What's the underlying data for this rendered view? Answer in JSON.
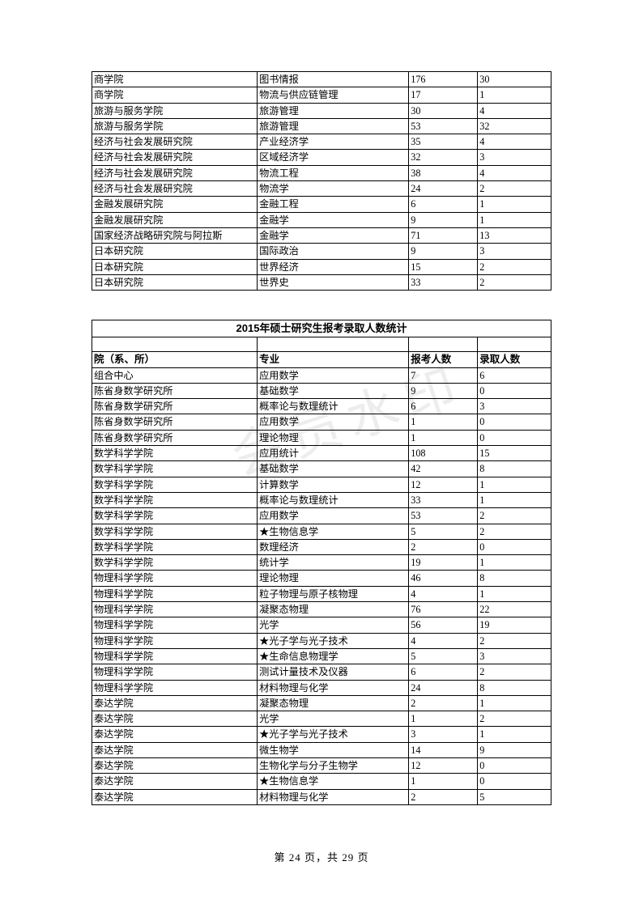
{
  "table1": {
    "rows": [
      [
        "商学院",
        "图书情报",
        "176",
        "30"
      ],
      [
        "商学院",
        "物流与供应链管理",
        "17",
        "1"
      ],
      [
        "旅游与服务学院",
        "旅游管理",
        "30",
        "4"
      ],
      [
        "旅游与服务学院",
        "旅游管理",
        "53",
        "32"
      ],
      [
        "经济与社会发展研究院",
        "产业经济学",
        "35",
        "4"
      ],
      [
        "经济与社会发展研究院",
        "区域经济学",
        "32",
        "3"
      ],
      [
        "经济与社会发展研究院",
        "物流工程",
        "38",
        "4"
      ],
      [
        "经济与社会发展研究院",
        "物流学",
        "24",
        "2"
      ],
      [
        "金融发展研究院",
        "金融工程",
        "6",
        "1"
      ],
      [
        "金融发展研究院",
        "金融学",
        "9",
        "1"
      ],
      [
        "国家经济战略研究院与阿拉斯",
        "金融学",
        "71",
        "13"
      ],
      [
        "日本研究院",
        "国际政治",
        "9",
        "3"
      ],
      [
        "日本研究院",
        "世界经济",
        "15",
        "2"
      ],
      [
        "日本研究院",
        "世界史",
        "33",
        "2"
      ]
    ]
  },
  "table2": {
    "title": "2015年硕士研究生报考录取人数统计",
    "headers": [
      "院（系、所）",
      "专业",
      "报考人数",
      "录取人数"
    ],
    "rows": [
      [
        "组合中心",
        "应用数学",
        "7",
        "6"
      ],
      [
        "陈省身数学研究所",
        "基础数学",
        "9",
        "0"
      ],
      [
        "陈省身数学研究所",
        "概率论与数理统计",
        "6",
        "3"
      ],
      [
        "陈省身数学研究所",
        "应用数学",
        "1",
        "0"
      ],
      [
        "陈省身数学研究所",
        "理论物理",
        "1",
        "0"
      ],
      [
        "数学科学学院",
        "应用统计",
        "108",
        "15"
      ],
      [
        "数学科学学院",
        "基础数学",
        "42",
        "8"
      ],
      [
        "数学科学学院",
        "计算数学",
        "12",
        "1"
      ],
      [
        "数学科学学院",
        "概率论与数理统计",
        "33",
        "1"
      ],
      [
        "数学科学学院",
        "应用数学",
        "53",
        "2"
      ],
      [
        "数学科学学院",
        "★生物信息学",
        "5",
        "2"
      ],
      [
        "数学科学学院",
        "数理经济",
        "2",
        "0"
      ],
      [
        "数学科学学院",
        "统计学",
        "19",
        "1"
      ],
      [
        "物理科学学院",
        "理论物理",
        "46",
        "8"
      ],
      [
        "物理科学学院",
        "粒子物理与原子核物理",
        "4",
        "1"
      ],
      [
        "物理科学学院",
        "凝聚态物理",
        "76",
        "22"
      ],
      [
        "物理科学学院",
        "光学",
        "56",
        "19"
      ],
      [
        "物理科学学院",
        "★光子学与光子技术",
        "4",
        "2"
      ],
      [
        "物理科学学院",
        "★生命信息物理学",
        "5",
        "3"
      ],
      [
        "物理科学学院",
        "测试计量技术及仪器",
        "6",
        "2"
      ],
      [
        "物理科学学院",
        "材料物理与化学",
        "24",
        "8"
      ],
      [
        "泰达学院",
        "凝聚态物理",
        "2",
        "1"
      ],
      [
        "泰达学院",
        "光学",
        "1",
        "2"
      ],
      [
        "泰达学院",
        "★光子学与光子技术",
        "3",
        "1"
      ],
      [
        "泰达学院",
        "微生物学",
        "14",
        "9"
      ],
      [
        "泰达学院",
        "生物化学与分子生物学",
        "12",
        "0"
      ],
      [
        "泰达学院",
        "★生物信息学",
        "1",
        "0"
      ],
      [
        "泰达学院",
        "材料物理与化学",
        "2",
        "5"
      ]
    ]
  },
  "footer": {
    "prefix": "第 ",
    "page": "24",
    "mid": " 页，共 ",
    "total": "29",
    "suffix": " 页"
  },
  "watermark": "会员水印",
  "style": {
    "border_color": "#000000",
    "background_color": "#ffffff",
    "font_size_cell": 12.2,
    "font_size_title": 13,
    "row_height": 18.2,
    "col_widths_pct": [
      36,
      33,
      15,
      16
    ]
  }
}
